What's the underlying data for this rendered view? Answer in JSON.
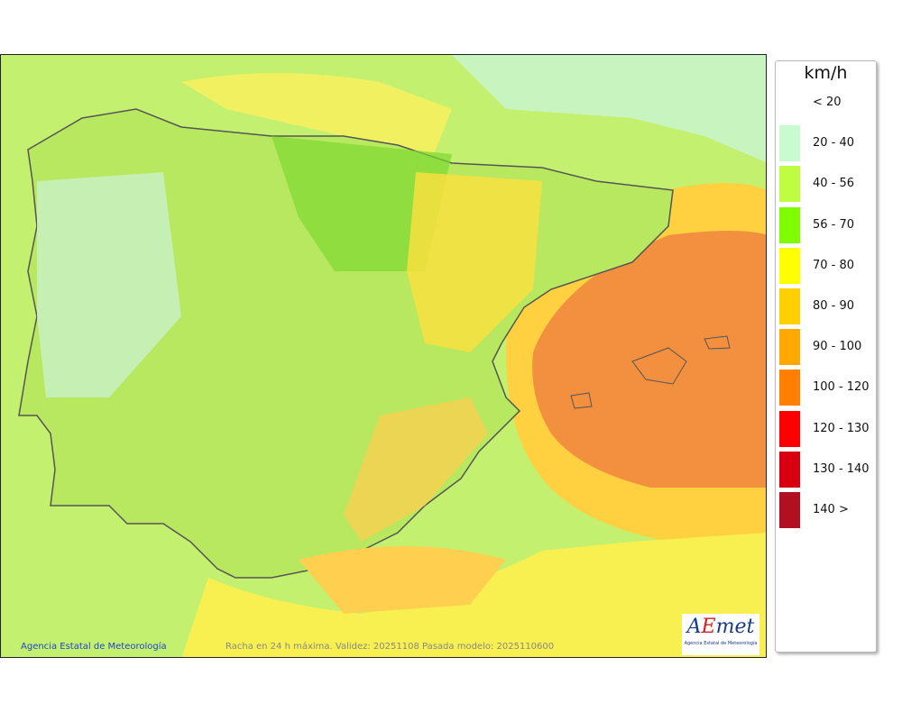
{
  "map": {
    "credit": "Agencia Estatal de Meteorología",
    "caption": "Racha en 24 h máxima. Validez: 20251108 Pasada modelo: 2025110600",
    "logo_text": "AEMet",
    "logo_subtitle": "Agencia Estatal de Meteorología"
  },
  "legend": {
    "unit": "km/h",
    "items": [
      {
        "label": "< 20",
        "color": "#ffffff"
      },
      {
        "label": "20 - 40",
        "color": "#c8fcd0"
      },
      {
        "label": "40 - 56",
        "color": "#c0fc40"
      },
      {
        "label": "56 - 70",
        "color": "#80fc00"
      },
      {
        "label": "70 - 80",
        "color": "#ffff00"
      },
      {
        "label": "80 - 90",
        "color": "#ffd000"
      },
      {
        "label": "90 - 100",
        "color": "#ffa800"
      },
      {
        "label": "100 - 120",
        "color": "#ff8000"
      },
      {
        "label": "120 - 130",
        "color": "#ff0000"
      },
      {
        "label": "130 - 140",
        "color": "#d80010"
      },
      {
        "label": "140 >",
        "color": "#b01020"
      }
    ]
  }
}
